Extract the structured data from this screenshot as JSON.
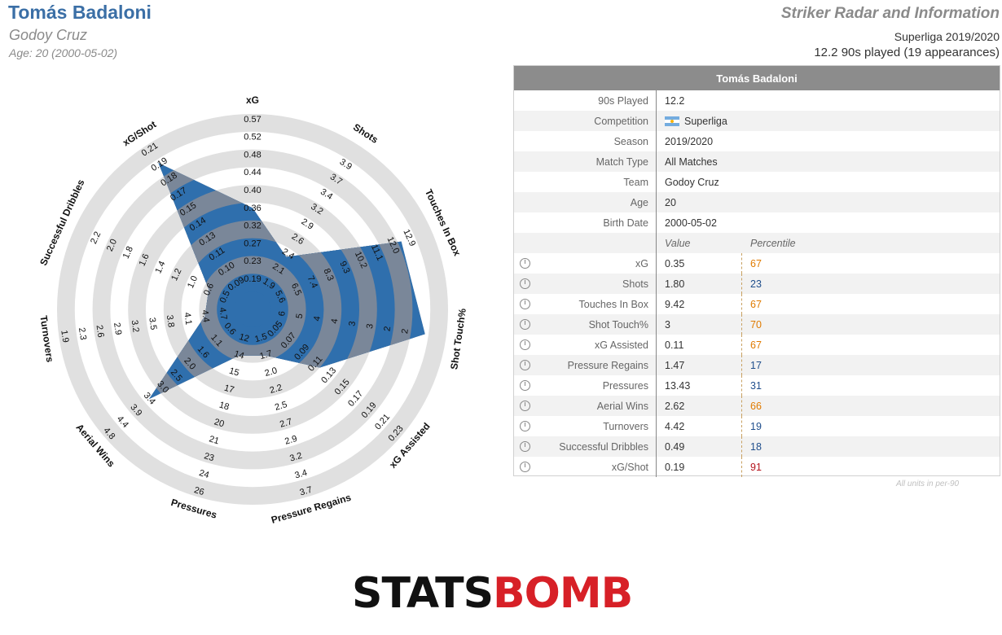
{
  "header": {
    "player_name": "Tomás Badaloni",
    "team": "Godoy Cruz",
    "age_line": "Age: 20 (2000-05-02)",
    "radar_title": "Striker Radar and Information",
    "league_season": "Superliga 2019/2020",
    "played": "12.2 90s played (19 appearances)"
  },
  "info_table": {
    "title": "Tomás Badaloni",
    "rows": [
      {
        "label": "90s Played",
        "value": "12.2"
      },
      {
        "label": "Competition",
        "value": "Superliga"
      },
      {
        "label": "Season",
        "value": "2019/2020"
      },
      {
        "label": "Match Type",
        "value": "All Matches"
      },
      {
        "label": "Team",
        "value": "Godoy Cruz"
      },
      {
        "label": "Age",
        "value": "20"
      },
      {
        "label": "Birth Date",
        "value": "2000-05-02"
      }
    ],
    "value_header": "Value",
    "percentile_header": "Percentile",
    "metrics": [
      {
        "label": "xG",
        "value": "0.35",
        "percentile": "67",
        "color": "#e07b00"
      },
      {
        "label": "Shots",
        "value": "1.80",
        "percentile": "23",
        "color": "#1f4e8c"
      },
      {
        "label": "Touches In Box",
        "value": "9.42",
        "percentile": "67",
        "color": "#e07b00"
      },
      {
        "label": "Shot Touch%",
        "value": "3",
        "percentile": "70",
        "color": "#e07b00"
      },
      {
        "label": "xG Assisted",
        "value": "0.11",
        "percentile": "67",
        "color": "#e07b00"
      },
      {
        "label": "Pressure Regains",
        "value": "1.47",
        "percentile": "17",
        "color": "#1f4e8c"
      },
      {
        "label": "Pressures",
        "value": "13.43",
        "percentile": "31",
        "color": "#1f4e8c"
      },
      {
        "label": "Aerial Wins",
        "value": "2.62",
        "percentile": "66",
        "color": "#e07b00"
      },
      {
        "label": "Turnovers",
        "value": "4.42",
        "percentile": "19",
        "color": "#1f4e8c"
      },
      {
        "label": "Successful Dribbles",
        "value": "0.49",
        "percentile": "18",
        "color": "#1f4e8c"
      },
      {
        "label": "xG/Shot",
        "value": "0.19",
        "percentile": "91",
        "color": "#b5121b"
      }
    ],
    "footnote": "All units in per-90"
  },
  "chart_data": {
    "type": "radar",
    "colors": {
      "polygon": "#2f6fad",
      "ring_light": "#e0e0e0",
      "ring_dark": "#c9c9c9"
    },
    "axes": [
      {
        "label": "xG",
        "ticks": [
          "0.19",
          "0.23",
          "0.27",
          "0.32",
          "0.36",
          "0.40",
          "0.44",
          "0.48",
          "0.52",
          "0.57"
        ],
        "value": 0.35
      },
      {
        "label": "Shots",
        "ticks": [
          "1.9",
          "2.1",
          "2.4",
          "2.6",
          "2.9",
          "3.2",
          "3.4",
          "3.7",
          "3.9"
        ],
        "value": 1.8
      },
      {
        "label": "Touches In Box",
        "ticks": [
          "5.6",
          "6.5",
          "7.4",
          "8.3",
          "9.3",
          "10.2",
          "11.1",
          "12.0",
          "12.9"
        ],
        "value": 9.42
      },
      {
        "label": "Shot Touch%",
        "ticks": [
          "6",
          "5",
          "4",
          "4",
          "3",
          "3",
          "2",
          "2"
        ],
        "value": 3
      },
      {
        "label": "xG Assisted",
        "ticks": [
          "0.05",
          "0.07",
          "0.09",
          "0.11",
          "0.13",
          "0.15",
          "0.17",
          "0.19",
          "0.21",
          "0.23"
        ],
        "value": 0.11
      },
      {
        "label": "Pressure Regains",
        "ticks": [
          "1.5",
          "1.7",
          "2.0",
          "2.2",
          "2.5",
          "2.7",
          "2.9",
          "3.2",
          "3.4",
          "3.7"
        ],
        "value": 1.47
      },
      {
        "label": "Pressures",
        "ticks": [
          "12",
          "14",
          "15",
          "17",
          "18",
          "20",
          "21",
          "23",
          "24",
          "26"
        ],
        "value": 13.43
      },
      {
        "label": "Aerial Wins",
        "ticks": [
          "0.6",
          "1.1",
          "1.6",
          "2.0",
          "2.5",
          "3.0",
          "3.4",
          "3.9",
          "4.4",
          "4.8"
        ],
        "value": 2.62
      },
      {
        "label": "Turnovers",
        "ticks": [
          "4.7",
          "4.4",
          "4.1",
          "3.8",
          "3.5",
          "3.2",
          "2.9",
          "2.6",
          "2.3",
          "1.9"
        ],
        "value": 4.42
      },
      {
        "label": "Successful Dribbles",
        "ticks": [
          "0.5",
          "0.6",
          "1.0",
          "1.2",
          "1.4",
          "1.6",
          "1.8",
          "2.0",
          "2.2"
        ],
        "value": 0.49
      },
      {
        "label": "xG/Shot",
        "ticks": [
          "0.09",
          "0.10",
          "0.11",
          "0.13",
          "0.14",
          "0.15",
          "0.17",
          "0.18",
          "0.19",
          "0.21"
        ],
        "value": 0.19
      }
    ],
    "polygon_fraction": [
      0.47,
      0.25,
      0.82,
      0.88,
      0.4,
      0.17,
      0.17,
      0.67,
      0.17,
      0.17,
      0.88
    ]
  },
  "logo": {
    "part1": "STATS",
    "part2": "BOMB"
  }
}
